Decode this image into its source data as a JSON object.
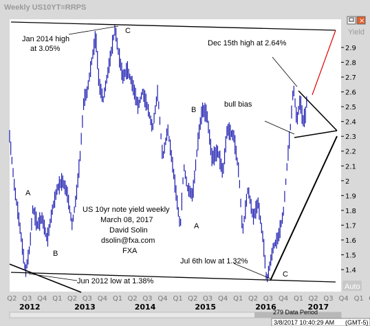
{
  "window": {
    "title": "Weekly US10YT=RRPS",
    "yaxis_label": "Yield",
    "auto_label": "Auto",
    "status_period": "279 Data Period",
    "status_time": "3/8/2017 10:40:29 AM",
    "status_tz": "(GMT-5)"
  },
  "colors": {
    "series": "#1a1ab0",
    "trendline": "#000000",
    "projection": "#e00000",
    "plot_bg": "#ffffff",
    "frame_bg": "#d9d9d9"
  },
  "chart_data": {
    "type": "line",
    "title": "Weekly US10YT=RRPS",
    "ylabel": "Yield",
    "ylim": [
      1.3,
      3.2
    ],
    "yticks": [
      "2.9",
      "2.8",
      "2.7",
      "2.6",
      "2.5",
      "2.4",
      "2.3",
      "2.2",
      "2.1",
      "2",
      "1.9",
      "1.8",
      "1.7",
      "1.6",
      "1.5",
      "1.4"
    ],
    "quarter_ticks": [
      "Q2",
      "Q3",
      "Q4",
      "Q1",
      "Q2",
      "Q3",
      "Q4",
      "Q1",
      "Q2",
      "Q3",
      "Q4",
      "Q1",
      "Q2",
      "Q3",
      "Q4",
      "Q1",
      "Q2",
      "Q3",
      "Q4",
      "Q1",
      "Q2",
      "Q3",
      "Q4",
      "Q1",
      "Q2",
      "Q3"
    ],
    "year_labels": [
      "2012",
      "2013",
      "2014",
      "2015",
      "2016",
      "2017"
    ],
    "x_start": "2012-04-01",
    "x_end": "2017-09-30",
    "grid": false,
    "legend": "none",
    "series": [
      {
        "points": [
          [
            "2012-04-01",
            2.3
          ],
          [
            "2012-05-01",
            1.95
          ],
          [
            "2012-05-20",
            1.8
          ],
          [
            "2012-06-10",
            1.62
          ],
          [
            "2012-07-06",
            1.38
          ],
          [
            "2012-08-01",
            1.55
          ],
          [
            "2012-08-20",
            1.82
          ],
          [
            "2012-09-15",
            1.7
          ],
          [
            "2012-10-15",
            1.75
          ],
          [
            "2012-11-15",
            1.6
          ],
          [
            "2012-12-15",
            1.8
          ],
          [
            "2013-01-15",
            1.95
          ],
          [
            "2013-02-15",
            2.0
          ],
          [
            "2013-03-15",
            1.92
          ],
          [
            "2013-04-15",
            1.7
          ],
          [
            "2013-05-10",
            1.9
          ],
          [
            "2013-06-01",
            2.15
          ],
          [
            "2013-06-25",
            2.55
          ],
          [
            "2013-07-15",
            2.6
          ],
          [
            "2013-08-10",
            2.8
          ],
          [
            "2013-09-05",
            2.98
          ],
          [
            "2013-09-25",
            2.65
          ],
          [
            "2013-10-20",
            2.55
          ],
          [
            "2013-11-20",
            2.75
          ],
          [
            "2013-12-31",
            3.03
          ],
          [
            "2014-01-15",
            2.9
          ],
          [
            "2014-02-15",
            2.7
          ],
          [
            "2014-03-15",
            2.75
          ],
          [
            "2014-04-15",
            2.65
          ],
          [
            "2014-05-20",
            2.5
          ],
          [
            "2014-06-15",
            2.6
          ],
          [
            "2014-07-15",
            2.5
          ],
          [
            "2014-08-15",
            2.35
          ],
          [
            "2014-09-15",
            2.6
          ],
          [
            "2014-10-15",
            2.15
          ],
          [
            "2014-11-15",
            2.35
          ],
          [
            "2014-12-15",
            2.1
          ],
          [
            "2015-01-30",
            1.68
          ],
          [
            "2015-02-20",
            2.1
          ],
          [
            "2015-03-15",
            1.95
          ],
          [
            "2015-04-15",
            1.9
          ],
          [
            "2015-05-20",
            2.3
          ],
          [
            "2015-06-12",
            2.48
          ],
          [
            "2015-07-10",
            2.45
          ],
          [
            "2015-08-10",
            2.15
          ],
          [
            "2015-09-15",
            2.2
          ],
          [
            "2015-10-15",
            2.05
          ],
          [
            "2015-11-10",
            2.35
          ],
          [
            "2015-12-20",
            2.3
          ],
          [
            "2016-01-20",
            2.05
          ],
          [
            "2016-02-11",
            1.65
          ],
          [
            "2016-03-15",
            1.95
          ],
          [
            "2016-04-15",
            1.75
          ],
          [
            "2016-05-15",
            1.85
          ],
          [
            "2016-06-15",
            1.6
          ],
          [
            "2016-07-06",
            1.32
          ],
          [
            "2016-08-15",
            1.55
          ],
          [
            "2016-09-15",
            1.62
          ],
          [
            "2016-10-15",
            1.78
          ],
          [
            "2016-11-10",
            2.15
          ],
          [
            "2016-11-30",
            2.4
          ],
          [
            "2016-12-15",
            2.64
          ],
          [
            "2017-01-05",
            2.4
          ],
          [
            "2017-01-25",
            2.55
          ],
          [
            "2017-02-10",
            2.4
          ],
          [
            "2017-02-28",
            2.45
          ],
          [
            "2017-03-08",
            2.58
          ]
        ]
      }
    ],
    "annotations": [
      "Jan 2014 high",
      "at 3.05%",
      "Dec 15th high at 2.64%",
      "bull bias",
      "US 10yr note yield weekly",
      "March 08, 2017",
      "David Solin",
      "dsolin@fxa.com",
      "FXA",
      "Jul 6th low at 1.32%",
      "Jun 2012 low at 1.38%",
      "A",
      "B",
      "C",
      "B",
      "A",
      "C"
    ]
  }
}
